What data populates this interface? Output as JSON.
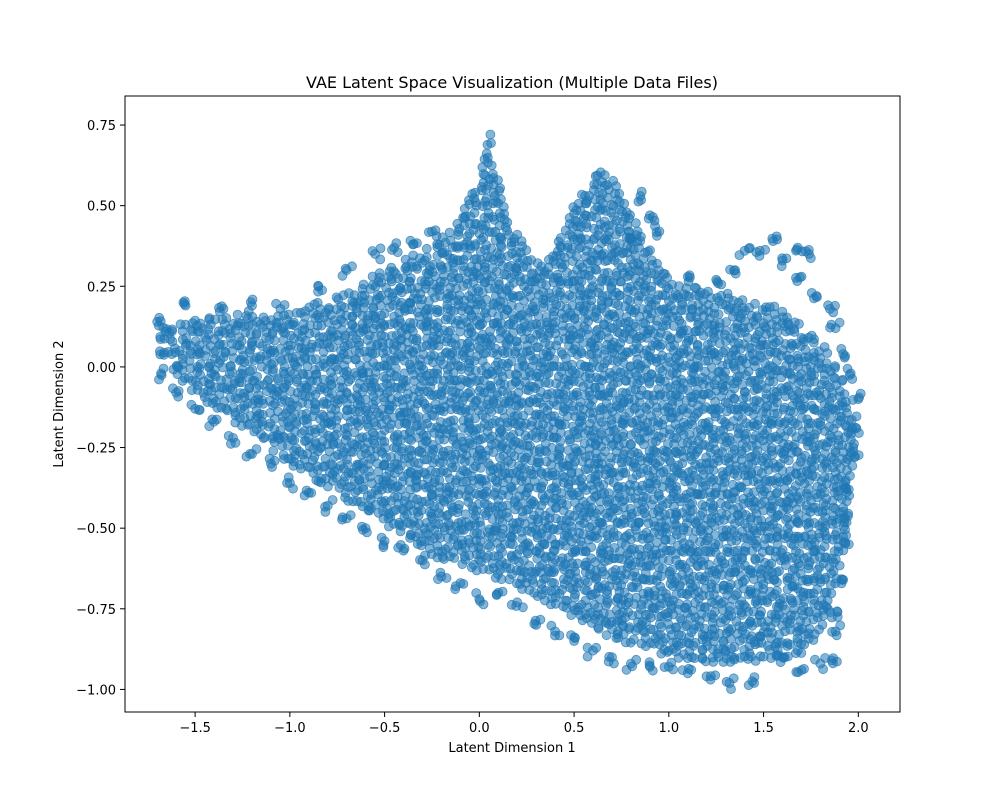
{
  "chart_data": {
    "type": "scatter",
    "title": "VAE Latent Space Visualization (Multiple Data Files)",
    "xlabel": "Latent Dimension 1",
    "ylabel": "Latent Dimension 2",
    "xlim": [
      -1.87,
      2.22
    ],
    "ylim": [
      -1.07,
      0.84
    ],
    "xticks": [
      -1.5,
      -1.0,
      -0.5,
      0.0,
      0.5,
      1.0,
      1.5,
      2.0
    ],
    "xtick_labels": [
      "−1.5",
      "−1.0",
      "−0.5",
      "0.0",
      "0.5",
      "1.0",
      "1.5",
      "2.0"
    ],
    "yticks": [
      -1.0,
      -0.75,
      -0.5,
      -0.25,
      0.0,
      0.25,
      0.5,
      0.75
    ],
    "ytick_labels": [
      "−1.00",
      "−0.75",
      "−0.50",
      "−0.25",
      "0.00",
      "0.25",
      "0.50",
      "0.75"
    ],
    "grid": false,
    "legend": "none",
    "marker_color": "#1f77b4",
    "marker_alpha": 0.55,
    "series": [
      {
        "description_outline": "dense point cloud",
        "dense_region_outline": [
          [
            -1.7,
            0.13
          ],
          [
            -1.4,
            0.16
          ],
          [
            -1.0,
            0.17
          ],
          [
            -0.7,
            0.24
          ],
          [
            -0.4,
            0.33
          ],
          [
            -0.15,
            0.42
          ],
          [
            0.0,
            0.58
          ],
          [
            0.05,
            0.75
          ],
          [
            0.1,
            0.58
          ],
          [
            0.15,
            0.45
          ],
          [
            0.25,
            0.38
          ],
          [
            0.32,
            0.31
          ],
          [
            0.4,
            0.38
          ],
          [
            0.5,
            0.5
          ],
          [
            0.62,
            0.61
          ],
          [
            0.72,
            0.58
          ],
          [
            0.85,
            0.42
          ],
          [
            1.0,
            0.27
          ],
          [
            1.3,
            0.23
          ],
          [
            1.6,
            0.18
          ],
          [
            1.85,
            0.05
          ],
          [
            2.0,
            -0.15
          ],
          [
            1.95,
            -0.5
          ],
          [
            1.85,
            -0.78
          ],
          [
            1.7,
            -0.9
          ],
          [
            1.3,
            -0.92
          ],
          [
            1.0,
            -0.9
          ],
          [
            0.6,
            -0.82
          ],
          [
            0.2,
            -0.68
          ],
          [
            -0.2,
            -0.6
          ],
          [
            -0.6,
            -0.45
          ],
          [
            -1.0,
            -0.3
          ],
          [
            -1.3,
            -0.17
          ],
          [
            -1.55,
            -0.06
          ],
          [
            -1.7,
            0.05
          ]
        ],
        "sparse_points": [
          [
            -1.7,
            0.14
          ],
          [
            -1.55,
            0.19
          ],
          [
            -1.35,
            0.18
          ],
          [
            -1.2,
            0.19
          ],
          [
            -1.05,
            0.18
          ],
          [
            -0.85,
            0.25
          ],
          [
            -0.7,
            0.3
          ],
          [
            -0.55,
            0.35
          ],
          [
            -0.45,
            0.37
          ],
          [
            -0.35,
            0.38
          ],
          [
            -0.25,
            0.42
          ],
          [
            0.85,
            0.53
          ],
          [
            0.9,
            0.47
          ],
          [
            0.95,
            0.42
          ],
          [
            0.8,
            0.4
          ],
          [
            1.1,
            0.28
          ],
          [
            1.25,
            0.27
          ],
          [
            1.35,
            0.3
          ],
          [
            1.4,
            0.36
          ],
          [
            1.48,
            0.36
          ],
          [
            1.55,
            0.39
          ],
          [
            1.6,
            0.33
          ],
          [
            1.68,
            0.37
          ],
          [
            1.74,
            0.35
          ],
          [
            1.7,
            0.28
          ],
          [
            1.78,
            0.22
          ],
          [
            1.85,
            0.18
          ],
          [
            1.88,
            0.12
          ],
          [
            1.92,
            0.04
          ],
          [
            1.96,
            -0.02
          ],
          [
            2.0,
            -0.1
          ],
          [
            1.99,
            -0.19
          ],
          [
            1.98,
            -0.28
          ],
          [
            1.95,
            -0.38
          ],
          [
            1.93,
            -0.47
          ],
          [
            1.95,
            -0.55
          ],
          [
            1.92,
            -0.66
          ],
          [
            1.89,
            -0.76
          ],
          [
            1.88,
            -0.82
          ],
          [
            1.86,
            -0.91
          ],
          [
            1.8,
            -0.92
          ],
          [
            1.7,
            -0.94
          ],
          [
            1.6,
            -0.9
          ],
          [
            1.45,
            -0.98
          ],
          [
            1.32,
            -0.98
          ],
          [
            1.22,
            -0.97
          ],
          [
            1.1,
            -0.95
          ],
          [
            1.0,
            -0.93
          ],
          [
            0.9,
            -0.93
          ],
          [
            0.8,
            -0.92
          ],
          [
            0.7,
            -0.9
          ],
          [
            0.6,
            -0.88
          ],
          [
            0.5,
            -0.85
          ],
          [
            0.4,
            -0.82
          ],
          [
            0.3,
            -0.8
          ],
          [
            0.2,
            -0.73
          ],
          [
            0.1,
            -0.7
          ],
          [
            0.0,
            -0.72
          ],
          [
            -0.1,
            -0.67
          ],
          [
            -0.2,
            -0.65
          ],
          [
            -0.3,
            -0.6
          ],
          [
            -0.4,
            -0.57
          ],
          [
            -0.5,
            -0.54
          ],
          [
            -0.6,
            -0.5
          ],
          [
            -0.7,
            -0.47
          ],
          [
            -0.8,
            -0.43
          ],
          [
            -0.9,
            -0.39
          ],
          [
            -1.0,
            -0.36
          ],
          [
            -1.1,
            -0.3
          ],
          [
            -1.2,
            -0.27
          ],
          [
            -1.3,
            -0.22
          ],
          [
            -1.4,
            -0.17
          ],
          [
            -1.5,
            -0.13
          ],
          [
            -1.6,
            -0.08
          ],
          [
            -1.68,
            -0.02
          ]
        ]
      }
    ]
  }
}
